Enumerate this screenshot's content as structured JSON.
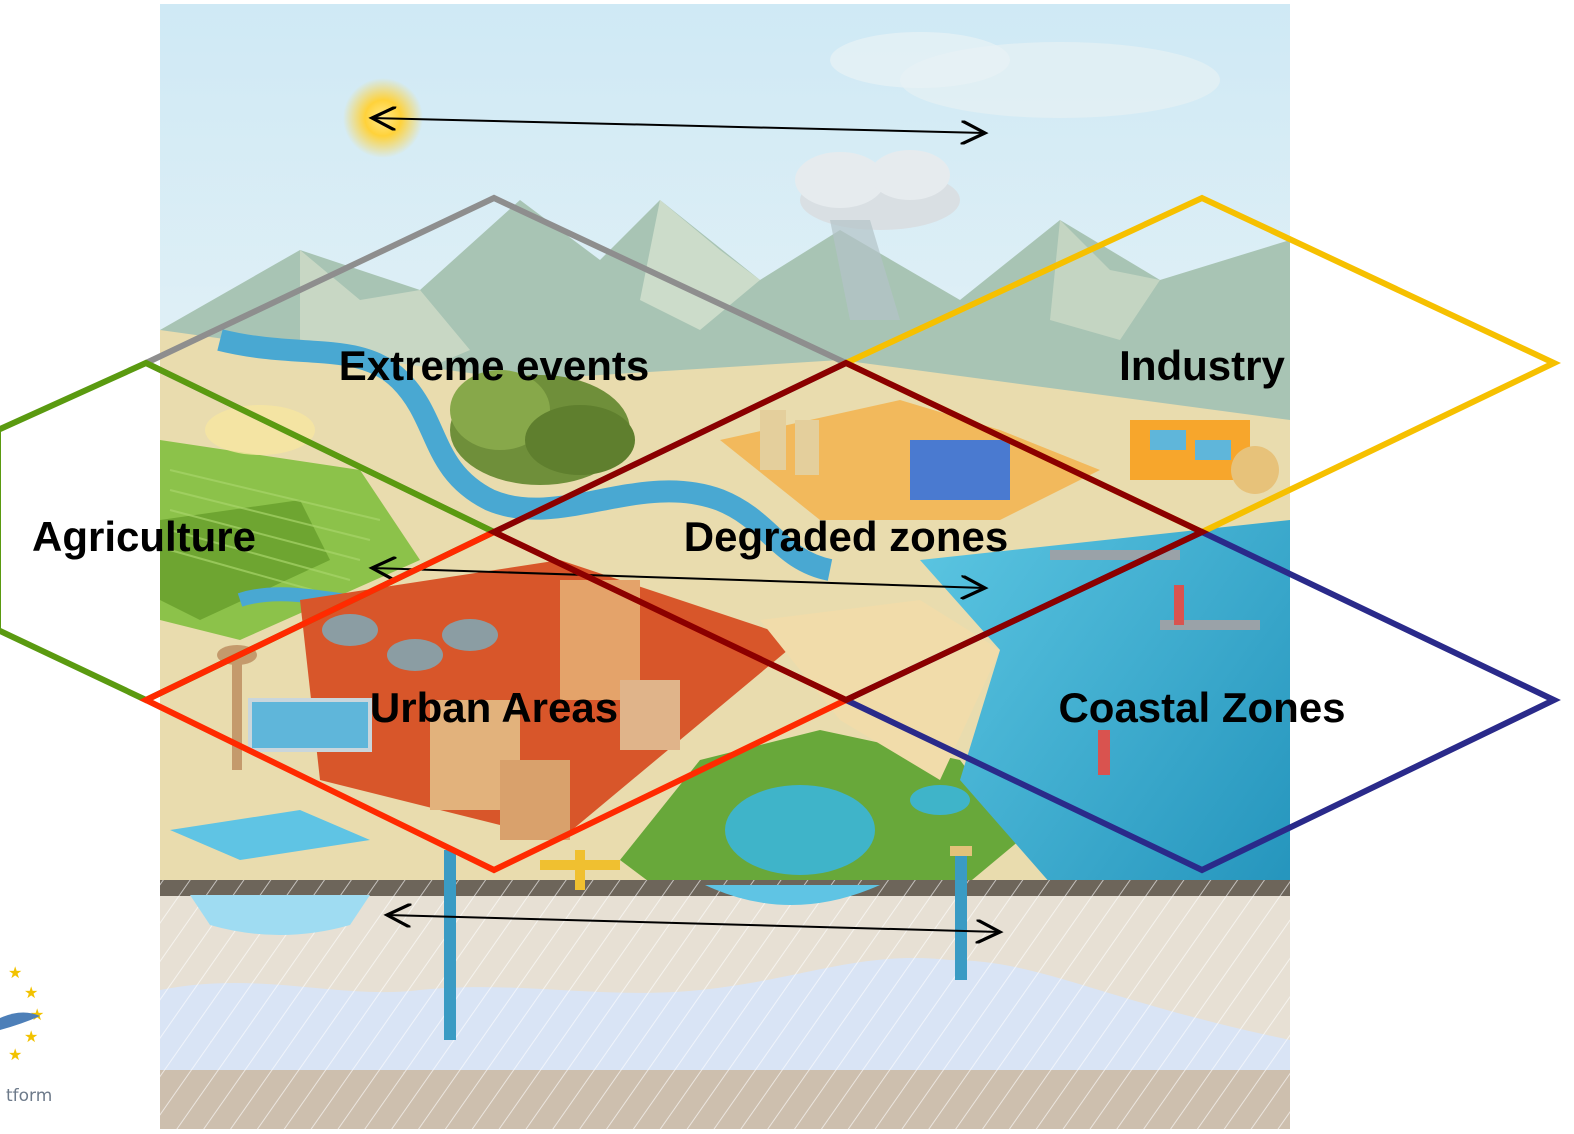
{
  "diagram": {
    "zones": [
      {
        "id": "extreme-events",
        "label": "Extreme events",
        "color": "#8e8e8e"
      },
      {
        "id": "industry",
        "label": "Industry",
        "color": "#f6c000"
      },
      {
        "id": "agriculture",
        "label": "Agriculture",
        "color": "#5a9a10"
      },
      {
        "id": "degraded-zones",
        "label": "Degraded zones",
        "color": "#8b0000"
      },
      {
        "id": "urban-areas",
        "label": "Urban Areas",
        "color": "#ff2a00"
      },
      {
        "id": "coastal-zones",
        "label": "Coastal Zones",
        "color": "#2a2a8a"
      }
    ],
    "arrows": [
      "sky-arrow",
      "surface-arrow",
      "groundwater-arrow"
    ]
  },
  "logo": {
    "partial_text": "tform"
  },
  "colors": {
    "sky": "#d6ecf4",
    "mountain": "#b9cfc0",
    "water": "#3aa9cf",
    "field": "#8cc24a",
    "urban": "#d8562a",
    "soil": "#e7e0d4",
    "aquifer": "#d9e4f5"
  }
}
